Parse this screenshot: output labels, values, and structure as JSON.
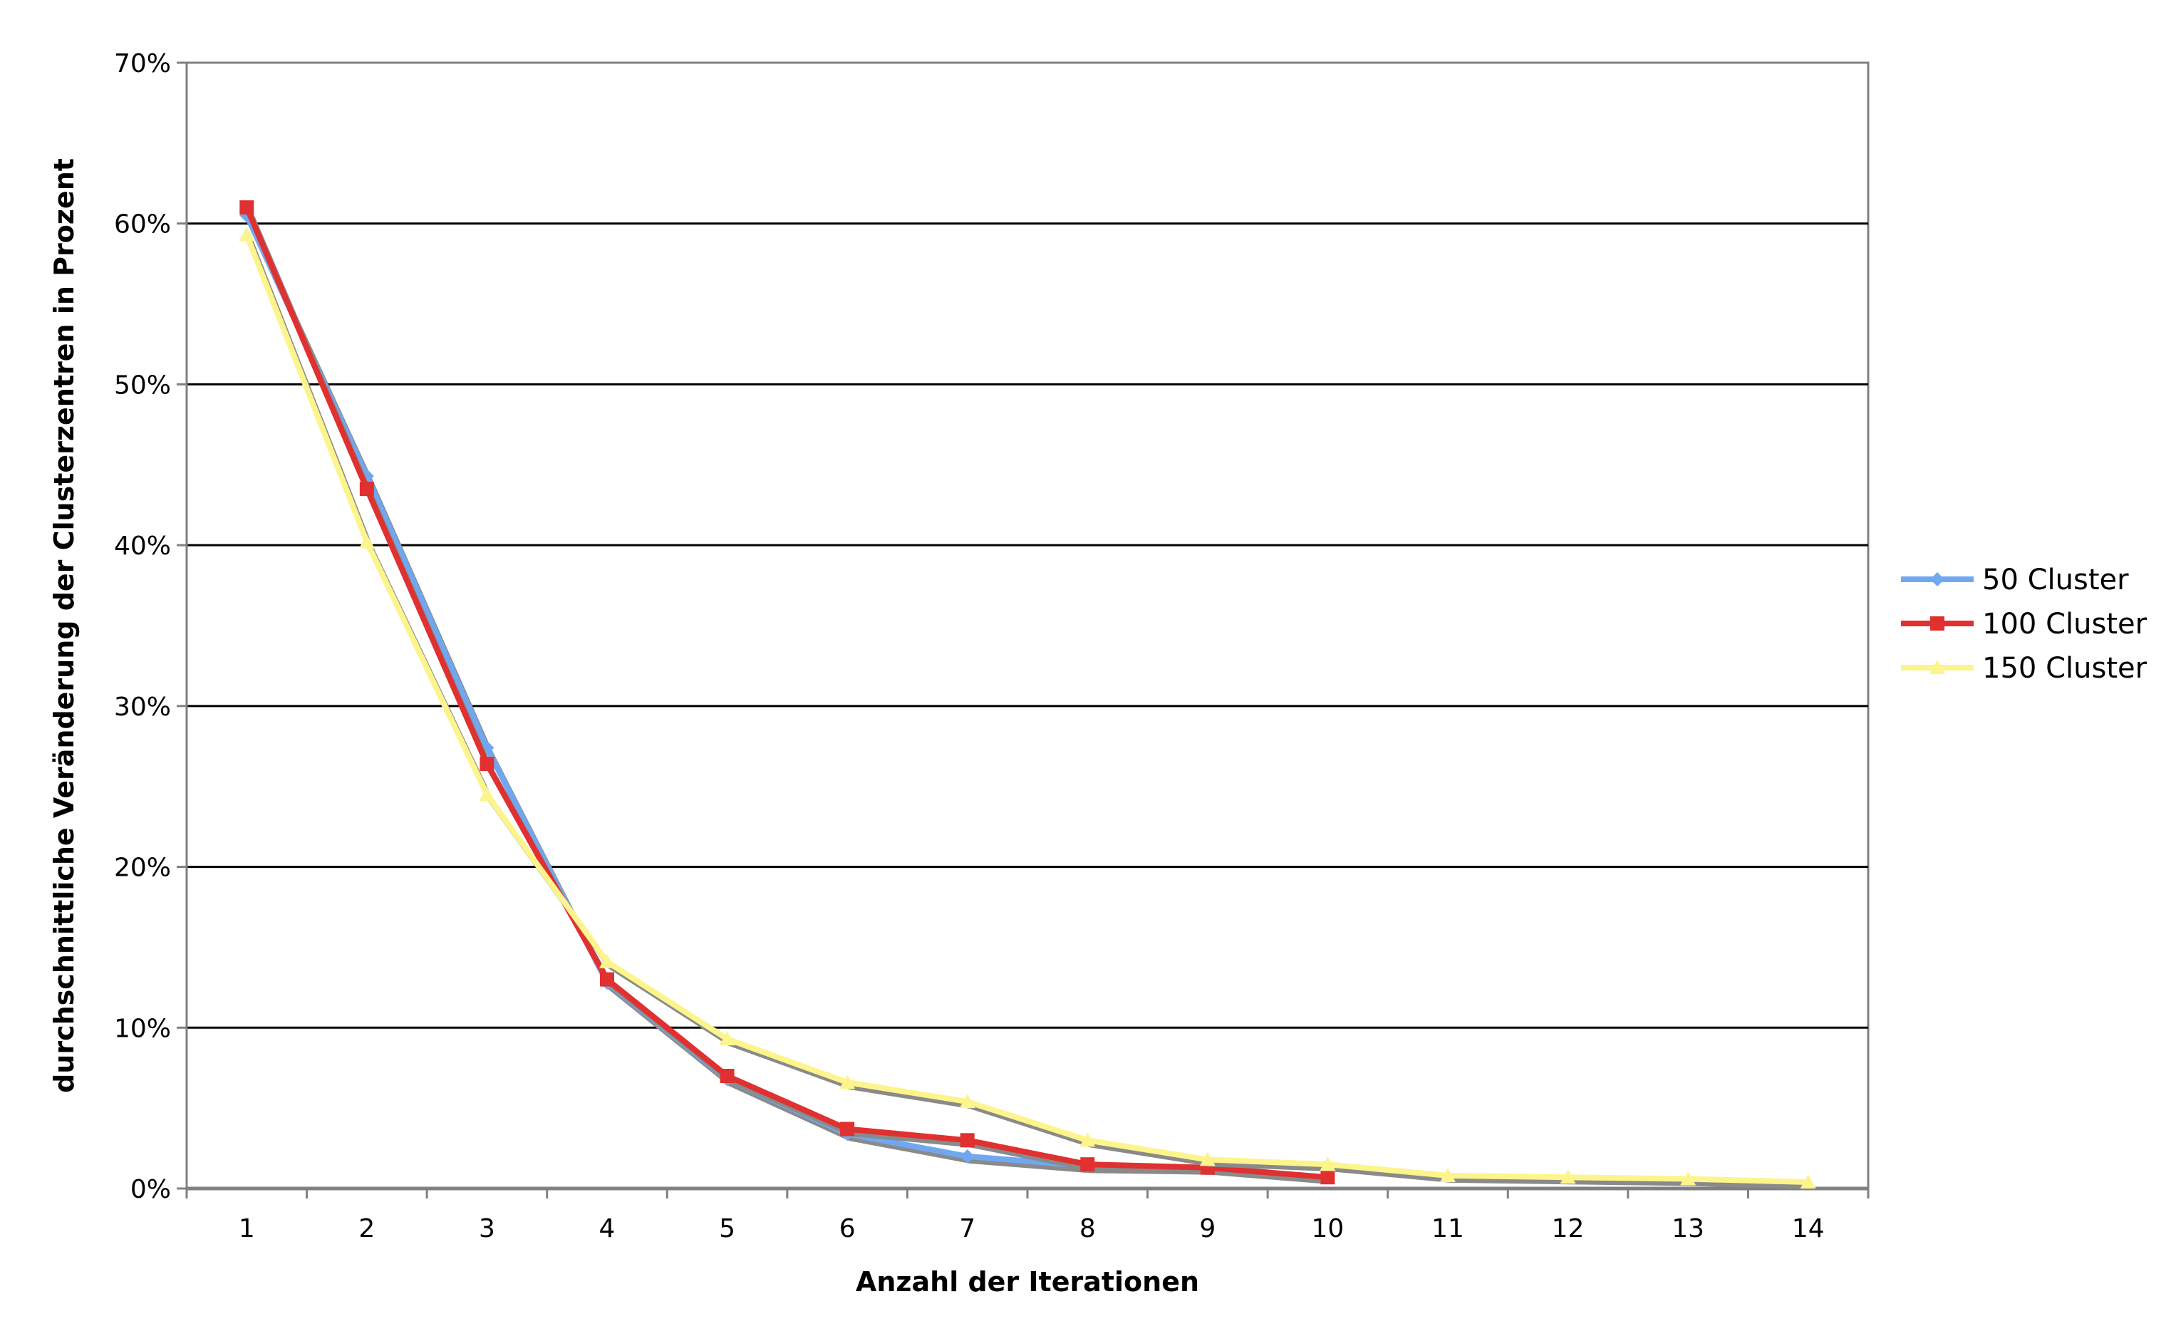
{
  "chart_data": {
    "type": "line",
    "xlabel": "Anzahl der Iterationen",
    "ylabel": "durchschnittliche Veränderung der Clusterzentren in Prozent",
    "x": [
      1,
      2,
      3,
      4,
      5,
      6,
      7,
      8,
      9,
      10,
      11,
      12,
      13,
      14
    ],
    "ylim": [
      0,
      70
    ],
    "yticks": [
      0,
      10,
      20,
      30,
      40,
      50,
      60,
      70
    ],
    "ytick_labels": [
      "0%",
      "10%",
      "20%",
      "30%",
      "40%",
      "50%",
      "60%",
      "70%"
    ],
    "grid": true,
    "legend_position": "right",
    "series": [
      {
        "name": "50 Cluster",
        "color": "#6fa8f0",
        "marker": "diamond",
        "values": [
          60.5,
          44.3,
          27.4,
          12.8,
          6.8,
          3.4,
          2.0,
          1.4,
          1.3,
          null,
          null,
          null,
          null,
          null
        ]
      },
      {
        "name": "100 Cluster",
        "color": "#e03030",
        "marker": "square",
        "values": [
          61.0,
          43.5,
          26.4,
          13.0,
          7.0,
          3.7,
          3.0,
          1.5,
          1.3,
          0.7,
          null,
          null,
          null,
          null
        ]
      },
      {
        "name": "150 Cluster",
        "color": "#fdf58c",
        "marker": "triangle",
        "values": [
          59.3,
          40.2,
          24.5,
          14.1,
          9.3,
          6.6,
          5.4,
          3.0,
          1.8,
          1.5,
          0.8,
          0.7,
          0.6,
          0.4
        ]
      }
    ]
  }
}
